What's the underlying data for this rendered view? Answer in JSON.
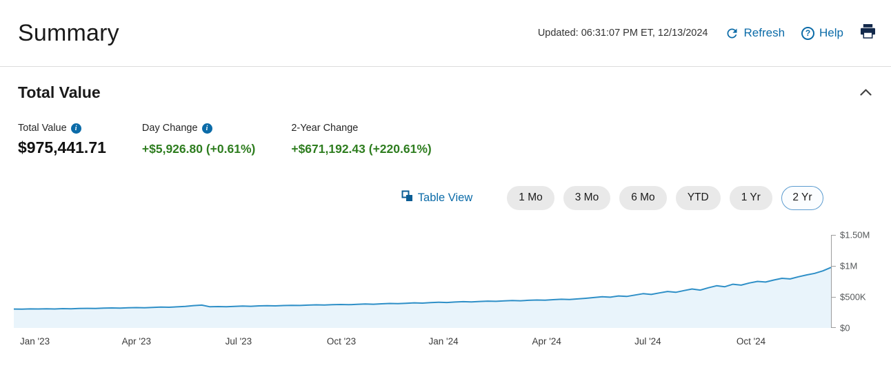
{
  "header": {
    "title": "Summary",
    "updated": "Updated: 06:31:07 PM ET, 12/13/2024",
    "refresh_label": "Refresh",
    "help_label": "Help"
  },
  "section": {
    "title": "Total Value"
  },
  "stats": [
    {
      "label": "Total Value",
      "value": "$975,441.71",
      "has_info": true
    },
    {
      "label": "Day Change",
      "value": "+$5,926.80 (+0.61%)",
      "has_info": true
    },
    {
      "label": "2-Year Change",
      "value": "+$671,192.43 (+220.61%)",
      "has_info": false
    }
  ],
  "table_view_label": "Table View",
  "time_ranges": [
    {
      "label": "1 Mo",
      "selected": false
    },
    {
      "label": "3 Mo",
      "selected": false
    },
    {
      "label": "6 Mo",
      "selected": false
    },
    {
      "label": "YTD",
      "selected": false
    },
    {
      "label": "1 Yr",
      "selected": false
    },
    {
      "label": "2 Yr",
      "selected": true
    }
  ],
  "colors": {
    "accent": "#0b6ba8",
    "positive_green": "#2e7d1f",
    "line_blue": "#2e8fc7",
    "area_fill": "#e9f4fb",
    "icon_navy": "#13294b"
  },
  "chart_data": {
    "type": "area",
    "series_name": "Total Value",
    "title": "",
    "xlabel": "",
    "ylabel": "",
    "grid": false,
    "legend": false,
    "x_span_months": 24,
    "x_start": "Dec 13 2022",
    "x_end": "Dec 13 2024",
    "ylim": [
      0,
      1500000
    ],
    "yticks": [
      {
        "label": "$0",
        "value": 0
      },
      {
        "label": "$500K",
        "value": 500000
      },
      {
        "label": "$1M",
        "value": 1000000
      },
      {
        "label": "$1.50M",
        "value": 1500000
      }
    ],
    "xticks": [
      {
        "label": "Jan '23",
        "month": 0.62
      },
      {
        "label": "Apr '23",
        "month": 3.6
      },
      {
        "label": "Jul '23",
        "month": 6.6
      },
      {
        "label": "Oct '23",
        "month": 9.62
      },
      {
        "label": "Jan '24",
        "month": 12.62
      },
      {
        "label": "Apr '24",
        "month": 15.65
      },
      {
        "label": "Jul '24",
        "month": 18.62
      },
      {
        "label": "Oct '24",
        "month": 21.65
      }
    ],
    "values": [
      304000,
      302000,
      307000,
      305000,
      309000,
      306000,
      311000,
      308000,
      313000,
      316000,
      314000,
      319000,
      322000,
      320000,
      325000,
      328000,
      326000,
      331000,
      335000,
      333000,
      340000,
      348000,
      360000,
      368000,
      341000,
      344000,
      342000,
      348000,
      352000,
      349000,
      355000,
      358000,
      355000,
      361000,
      365000,
      362000,
      368000,
      372000,
      369000,
      375000,
      378000,
      374000,
      381000,
      385000,
      382000,
      389000,
      394000,
      391000,
      398000,
      404000,
      400000,
      408000,
      414000,
      410000,
      418000,
      423000,
      420000,
      427000,
      432000,
      429000,
      436000,
      441000,
      438000,
      445000,
      450000,
      447000,
      455000,
      462000,
      458000,
      468000,
      478000,
      490000,
      502000,
      495000,
      516000,
      508000,
      530000,
      552000,
      540000,
      565000,
      588000,
      575000,
      602000,
      628000,
      610000,
      648000,
      680000,
      665000,
      705000,
      690000,
      725000,
      750000,
      740000,
      772000,
      800000,
      790000,
      825000,
      855000,
      880000,
      920000,
      975441.71
    ]
  }
}
